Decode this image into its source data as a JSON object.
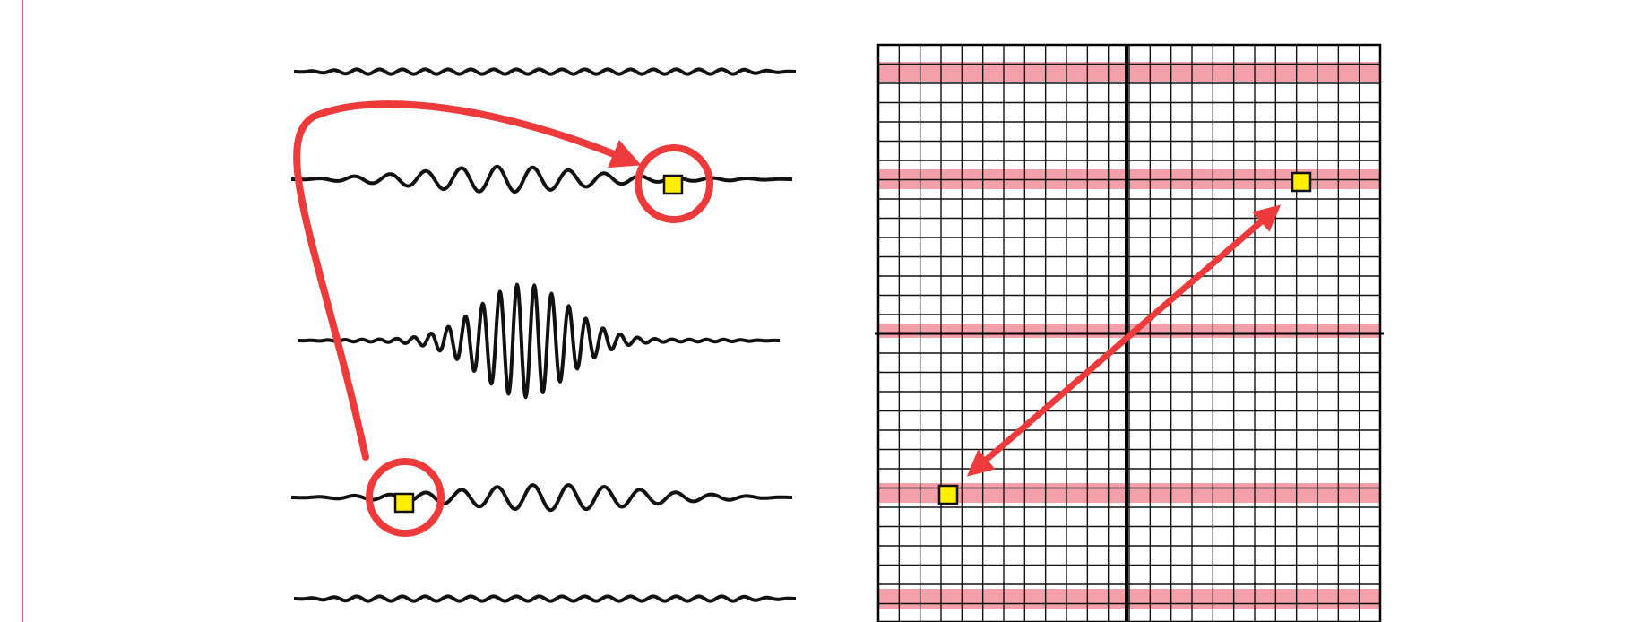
{
  "colors": {
    "background": "#ffffff",
    "page_border": "#e0509a",
    "trace": "#111111",
    "highlight_band": "#f4a0aa",
    "grid_line": "#111111",
    "grid_axis": "#000000",
    "arrow": "#ee3a3a",
    "marker_fill": "#ffee00",
    "marker_stroke": "#111111"
  },
  "icons": {
    "curved_arrow": "curved-arrow-icon",
    "double_arrow": "double-headed-arrow-icon",
    "marker": "square-marker-icon"
  },
  "diagram": {
    "traces": [
      {
        "name": "trace-1",
        "kind": "low-ripple"
      },
      {
        "name": "trace-2",
        "kind": "decaying-wave-right",
        "marked": true
      },
      {
        "name": "trace-3",
        "kind": "central-burst"
      },
      {
        "name": "trace-4",
        "kind": "decaying-wave-left",
        "marked": true
      },
      {
        "name": "trace-5",
        "kind": "low-ripple"
      }
    ],
    "grid": {
      "columns": 24,
      "rows": 30,
      "highlighted_rows": 5
    }
  }
}
